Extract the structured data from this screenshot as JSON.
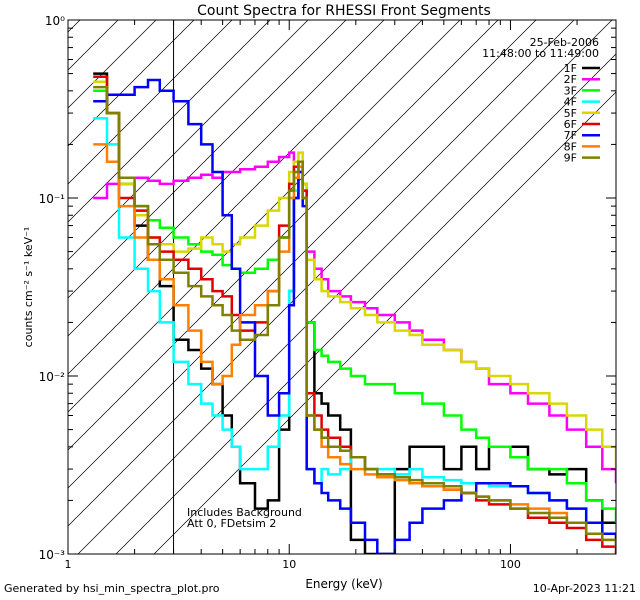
{
  "footer": {
    "generated_by": "Generated by hsi_min_spectra_plot.pro",
    "timestamp": "10-Apr-2023 11:21"
  },
  "chart_data": {
    "type": "line",
    "title": "Count Spectra for RHESSI Front Segments",
    "xlabel": "Energy (keV)",
    "ylabel": "counts cm⁻² s⁻¹ keV⁻¹",
    "xscale": "log",
    "yscale": "log",
    "xlim": [
      1,
      300
    ],
    "ylim": [
      0.001,
      1
    ],
    "xticks": [
      {
        "value": 1,
        "label": "1"
      },
      {
        "value": 10,
        "label": "10"
      },
      {
        "value": 100,
        "label": "100"
      }
    ],
    "yticks": [
      {
        "value": 1,
        "label": "10⁰"
      },
      {
        "value": 0.1,
        "label": "10⁻¹"
      },
      {
        "value": 0.01,
        "label": "10⁻²"
      },
      {
        "value": 0.001,
        "label": "10⁻³"
      }
    ],
    "date": "25-Feb-2006",
    "time_range": "11:48:00 to 11:49:00",
    "annotations": [
      "Includes Background",
      "Att 0, FDetsim 2"
    ],
    "hatched_region": {
      "from_energy": 1,
      "to_energy": 3
    },
    "legend_position": "top-right",
    "series": [
      {
        "name": "1F",
        "color": "#000000",
        "x": [
          1.3,
          1.5,
          1.7,
          2.0,
          2.3,
          2.6,
          3.0,
          3.5,
          4.0,
          4.5,
          5.0,
          5.5,
          6.0,
          7.0,
          8.0,
          9.0,
          10.0,
          10.5,
          11.0,
          11.5,
          12.0,
          13.0,
          14.0,
          15.0,
          17.0,
          19.0,
          22.0,
          25.0,
          30.0,
          35.0,
          40.0,
          50.0,
          60.0,
          70.0,
          80.0,
          100.0,
          120.0,
          150.0,
          180.0,
          220.0,
          260.0,
          300.0
        ],
        "y": [
          0.5,
          0.3,
          0.12,
          0.07,
          0.045,
          0.032,
          0.016,
          0.014,
          0.011,
          0.009,
          0.006,
          0.004,
          0.0025,
          0.0018,
          0.002,
          0.005,
          0.03,
          0.1,
          0.15,
          0.12,
          0.02,
          0.008,
          0.007,
          0.006,
          0.005,
          0.0012,
          0.001,
          0.001,
          0.003,
          0.004,
          0.004,
          0.003,
          0.004,
          0.003,
          0.004,
          0.004,
          0.003,
          0.0028,
          0.003,
          0.002,
          0.0015,
          0.0015
        ]
      },
      {
        "name": "2F",
        "color": "#ff00ff",
        "x": [
          1.3,
          1.5,
          1.7,
          2.0,
          2.3,
          2.6,
          3.0,
          3.5,
          4.0,
          4.5,
          5.0,
          5.5,
          6.0,
          7.0,
          8.0,
          9.0,
          10.0,
          10.5,
          11.0,
          11.5,
          12.0,
          13.0,
          14.0,
          15.0,
          17.0,
          19.0,
          22.0,
          25.0,
          30.0,
          35.0,
          40.0,
          50.0,
          60.0,
          70.0,
          80.0,
          100.0,
          120.0,
          150.0,
          180.0,
          220.0,
          260.0,
          300.0
        ],
        "y": [
          0.1,
          0.12,
          0.13,
          0.13,
          0.125,
          0.12,
          0.125,
          0.13,
          0.135,
          0.13,
          0.14,
          0.14,
          0.145,
          0.15,
          0.16,
          0.17,
          0.18,
          0.16,
          0.14,
          0.1,
          0.05,
          0.04,
          0.035,
          0.03,
          0.028,
          0.026,
          0.024,
          0.022,
          0.02,
          0.018,
          0.016,
          0.014,
          0.012,
          0.011,
          0.009,
          0.008,
          0.007,
          0.006,
          0.005,
          0.004,
          0.003,
          0.0025
        ]
      },
      {
        "name": "3F",
        "color": "#00ff00",
        "x": [
          1.3,
          1.5,
          1.7,
          2.0,
          2.3,
          2.6,
          3.0,
          3.5,
          4.0,
          4.5,
          5.0,
          5.5,
          6.0,
          7.0,
          8.0,
          9.0,
          10.0,
          10.5,
          11.0,
          11.5,
          12.0,
          13.0,
          14.0,
          15.0,
          17.0,
          19.0,
          22.0,
          25.0,
          30.0,
          35.0,
          40.0,
          50.0,
          60.0,
          70.0,
          80.0,
          100.0,
          120.0,
          150.0,
          180.0,
          220.0,
          260.0,
          300.0
        ],
        "y": [
          0.4,
          0.3,
          0.12,
          0.09,
          0.075,
          0.068,
          0.06,
          0.055,
          0.05,
          0.048,
          0.042,
          0.04,
          0.038,
          0.04,
          0.045,
          0.06,
          0.11,
          0.14,
          0.16,
          0.12,
          0.02,
          0.014,
          0.013,
          0.012,
          0.011,
          0.01,
          0.009,
          0.009,
          0.008,
          0.008,
          0.007,
          0.006,
          0.005,
          0.0045,
          0.004,
          0.0035,
          0.003,
          0.003,
          0.0025,
          0.002,
          0.0018,
          0.0015
        ]
      },
      {
        "name": "4F",
        "color": "#00ffff",
        "x": [
          1.3,
          1.5,
          1.7,
          2.0,
          2.3,
          2.6,
          3.0,
          3.5,
          4.0,
          4.5,
          5.0,
          5.5,
          6.0,
          7.0,
          8.0,
          9.0,
          10.0,
          10.5,
          11.0,
          11.5,
          12.0,
          13.0,
          14.0,
          15.0,
          17.0,
          19.0,
          22.0,
          25.0,
          30.0,
          35.0,
          40.0,
          50.0,
          60.0,
          70.0,
          80.0,
          100.0,
          120.0,
          150.0,
          180.0,
          220.0,
          260.0,
          300.0
        ],
        "y": [
          0.28,
          0.2,
          0.06,
          0.04,
          0.03,
          0.02,
          0.012,
          0.009,
          0.007,
          0.006,
          0.005,
          0.004,
          0.003,
          0.003,
          0.004,
          0.006,
          0.03,
          0.11,
          0.15,
          0.1,
          0.003,
          0.0025,
          0.003,
          0.0028,
          0.003,
          0.0035,
          0.003,
          0.003,
          0.0028,
          0.003,
          0.0027,
          0.0026,
          0.0025,
          0.0025,
          0.0024,
          0.0024,
          0.0022,
          0.002,
          0.0018,
          0.0015,
          0.0013,
          0.0012
        ]
      },
      {
        "name": "5F",
        "color": "#d8d800",
        "x": [
          1.3,
          1.5,
          1.7,
          2.0,
          2.3,
          2.6,
          3.0,
          3.5,
          4.0,
          4.5,
          5.0,
          5.5,
          6.0,
          7.0,
          8.0,
          9.0,
          10.0,
          10.5,
          11.0,
          11.5,
          12.0,
          13.0,
          14.0,
          15.0,
          17.0,
          19.0,
          22.0,
          25.0,
          30.0,
          35.0,
          40.0,
          50.0,
          60.0,
          70.0,
          80.0,
          100.0,
          120.0,
          150.0,
          180.0,
          220.0,
          260.0,
          300.0
        ],
        "y": [
          0.45,
          0.3,
          0.12,
          0.08,
          0.06,
          0.055,
          0.05,
          0.052,
          0.06,
          0.055,
          0.05,
          0.055,
          0.06,
          0.07,
          0.085,
          0.1,
          0.14,
          0.16,
          0.18,
          0.12,
          0.045,
          0.035,
          0.03,
          0.028,
          0.026,
          0.024,
          0.022,
          0.02,
          0.018,
          0.017,
          0.015,
          0.014,
          0.012,
          0.011,
          0.01,
          0.009,
          0.008,
          0.007,
          0.006,
          0.005,
          0.004,
          0.003
        ]
      },
      {
        "name": "6F",
        "color": "#e00000",
        "x": [
          1.3,
          1.5,
          1.7,
          2.0,
          2.3,
          2.6,
          3.0,
          3.5,
          4.0,
          4.5,
          5.0,
          5.5,
          6.0,
          7.0,
          8.0,
          9.0,
          10.0,
          10.5,
          11.0,
          11.5,
          12.0,
          13.0,
          14.0,
          15.0,
          17.0,
          19.0,
          22.0,
          25.0,
          30.0,
          35.0,
          40.0,
          50.0,
          60.0,
          70.0,
          80.0,
          100.0,
          120.0,
          150.0,
          180.0,
          220.0,
          260.0,
          300.0
        ],
        "y": [
          0.48,
          0.3,
          0.1,
          0.085,
          0.06,
          0.05,
          0.045,
          0.04,
          0.035,
          0.03,
          0.028,
          0.022,
          0.018,
          0.02,
          0.03,
          0.07,
          0.12,
          0.15,
          0.16,
          0.11,
          0.008,
          0.006,
          0.005,
          0.0045,
          0.004,
          0.0035,
          0.003,
          0.0028,
          0.0027,
          0.0025,
          0.0024,
          0.0023,
          0.0022,
          0.002,
          0.0019,
          0.0018,
          0.0016,
          0.0015,
          0.0014,
          0.0012,
          0.0011,
          0.001
        ]
      },
      {
        "name": "7F",
        "color": "#0000ff",
        "x": [
          1.3,
          1.5,
          1.7,
          2.0,
          2.3,
          2.6,
          3.0,
          3.5,
          4.0,
          4.5,
          5.0,
          5.5,
          6.0,
          7.0,
          8.0,
          9.0,
          10.0,
          10.5,
          11.0,
          11.5,
          12.0,
          13.0,
          14.0,
          15.0,
          17.0,
          19.0,
          22.0,
          25.0,
          30.0,
          35.0,
          40.0,
          50.0,
          60.0,
          70.0,
          80.0,
          100.0,
          120.0,
          150.0,
          180.0,
          220.0,
          260.0,
          300.0
        ],
        "y": [
          0.35,
          0.38,
          0.38,
          0.42,
          0.46,
          0.4,
          0.35,
          0.26,
          0.2,
          0.14,
          0.08,
          0.04,
          0.02,
          0.01,
          0.006,
          0.008,
          0.025,
          0.1,
          0.14,
          0.09,
          0.003,
          0.0025,
          0.0022,
          0.002,
          0.0018,
          0.0015,
          0.0012,
          0.001,
          0.0012,
          0.0015,
          0.0018,
          0.002,
          0.0022,
          0.0025,
          0.0025,
          0.0024,
          0.0022,
          0.002,
          0.0018,
          0.0015,
          0.0013,
          0.0012
        ]
      },
      {
        "name": "8F",
        "color": "#ff8000",
        "x": [
          1.3,
          1.5,
          1.7,
          2.0,
          2.3,
          2.6,
          3.0,
          3.5,
          4.0,
          4.5,
          5.0,
          5.5,
          6.0,
          7.0,
          8.0,
          9.0,
          10.0,
          10.5,
          11.0,
          11.5,
          12.0,
          13.0,
          14.0,
          15.0,
          17.0,
          19.0,
          22.0,
          25.0,
          30.0,
          35.0,
          40.0,
          50.0,
          60.0,
          70.0,
          80.0,
          100.0,
          120.0,
          150.0,
          180.0,
          220.0,
          260.0,
          300.0
        ],
        "y": [
          0.2,
          0.16,
          0.09,
          0.06,
          0.045,
          0.035,
          0.025,
          0.018,
          0.012,
          0.009,
          0.01,
          0.015,
          0.022,
          0.025,
          0.03,
          0.05,
          0.1,
          0.13,
          0.15,
          0.1,
          0.006,
          0.005,
          0.004,
          0.0035,
          0.0032,
          0.003,
          0.0028,
          0.0027,
          0.0026,
          0.0025,
          0.0024,
          0.0023,
          0.0022,
          0.0021,
          0.002,
          0.0019,
          0.0018,
          0.0017,
          0.0015,
          0.0013,
          0.0012,
          0.0011
        ]
      },
      {
        "name": "9F",
        "color": "#808000",
        "x": [
          1.3,
          1.5,
          1.7,
          2.0,
          2.3,
          2.6,
          3.0,
          3.5,
          4.0,
          4.5,
          5.0,
          5.5,
          6.0,
          7.0,
          8.0,
          9.0,
          10.0,
          10.5,
          11.0,
          11.5,
          12.0,
          13.0,
          14.0,
          15.0,
          17.0,
          19.0,
          22.0,
          25.0,
          30.0,
          35.0,
          40.0,
          50.0,
          60.0,
          70.0,
          80.0,
          100.0,
          120.0,
          150.0,
          180.0,
          220.0,
          260.0,
          300.0
        ],
        "y": [
          0.42,
          0.3,
          0.13,
          0.09,
          0.055,
          0.045,
          0.038,
          0.032,
          0.028,
          0.025,
          0.022,
          0.018,
          0.016,
          0.017,
          0.025,
          0.06,
          0.11,
          0.14,
          0.16,
          0.1,
          0.006,
          0.005,
          0.0045,
          0.004,
          0.0038,
          0.0035,
          0.003,
          0.0028,
          0.0027,
          0.0026,
          0.0025,
          0.0024,
          0.0022,
          0.0021,
          0.002,
          0.0018,
          0.0017,
          0.0016,
          0.0015,
          0.0013,
          0.0012,
          0.0011
        ]
      }
    ]
  }
}
